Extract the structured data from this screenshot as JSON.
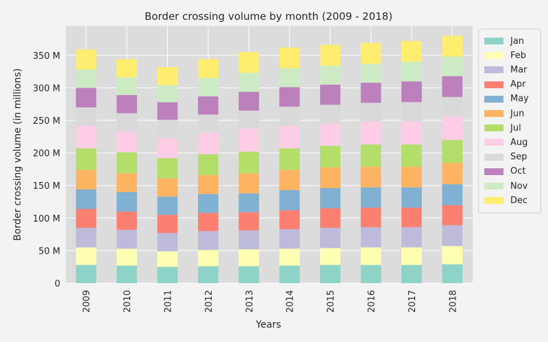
{
  "chart_data": {
    "type": "bar",
    "stacked": true,
    "title": "Border crossing volume by month (2009 - 2018)",
    "xlabel": "Years",
    "ylabel": "Border crossing volume (in millions)",
    "ylim": [
      0,
      395
    ],
    "yticks": [
      {
        "value": 0,
        "label": "0"
      },
      {
        "value": 50,
        "label": "50 M"
      },
      {
        "value": 100,
        "label": "100 M"
      },
      {
        "value": 150,
        "label": "150 M"
      },
      {
        "value": 200,
        "label": "200 M"
      },
      {
        "value": 250,
        "label": "250 M"
      },
      {
        "value": 300,
        "label": "300 M"
      },
      {
        "value": 350,
        "label": "350 M"
      }
    ],
    "grid": true,
    "legend_position": "upper-right",
    "categories": [
      "2009",
      "2010",
      "2011",
      "2012",
      "2013",
      "2014",
      "2015",
      "2016",
      "2017",
      "2018"
    ],
    "series": [
      {
        "name": "Jan",
        "color": "#8dd3c7",
        "values": [
          28,
          27,
          25,
          26,
          26,
          27,
          28,
          28,
          28,
          29
        ]
      },
      {
        "name": "Feb",
        "color": "#ffffb3",
        "values": [
          27,
          26,
          24,
          25,
          26,
          26,
          26,
          27,
          27,
          28
        ]
      },
      {
        "name": "Mar",
        "color": "#bebada",
        "values": [
          30,
          29,
          28,
          29,
          29,
          30,
          31,
          31,
          31,
          32
        ]
      },
      {
        "name": "Apr",
        "color": "#fb8072",
        "values": [
          29,
          28,
          28,
          28,
          28,
          29,
          30,
          30,
          30,
          31
        ]
      },
      {
        "name": "May",
        "color": "#80b1d3",
        "values": [
          30,
          30,
          28,
          29,
          29,
          31,
          31,
          31,
          31,
          32
        ]
      },
      {
        "name": "Jun",
        "color": "#fdb462",
        "values": [
          30,
          29,
          28,
          29,
          31,
          31,
          32,
          32,
          32,
          33
        ]
      },
      {
        "name": "Jul",
        "color": "#b3de69",
        "values": [
          33,
          32,
          31,
          32,
          33,
          33,
          33,
          34,
          34,
          35
        ]
      },
      {
        "name": "Aug",
        "color": "#fccde5",
        "values": [
          35,
          32,
          31,
          33,
          35,
          35,
          34,
          35,
          35,
          36
        ]
      },
      {
        "name": "Sep",
        "color": "#d9d9d9",
        "values": [
          28,
          28,
          28,
          28,
          28,
          29,
          29,
          29,
          30,
          30
        ]
      },
      {
        "name": "Oct",
        "color": "#bc80bd",
        "values": [
          30,
          28,
          27,
          28,
          29,
          30,
          31,
          31,
          32,
          32
        ]
      },
      {
        "name": "Nov",
        "color": "#ccebc5",
        "values": [
          28,
          27,
          26,
          28,
          29,
          29,
          29,
          29,
          30,
          30
        ]
      },
      {
        "name": "Dec",
        "color": "#ffed6f",
        "values": [
          31,
          28,
          28,
          29,
          32,
          32,
          32,
          32,
          32,
          32
        ]
      }
    ]
  }
}
